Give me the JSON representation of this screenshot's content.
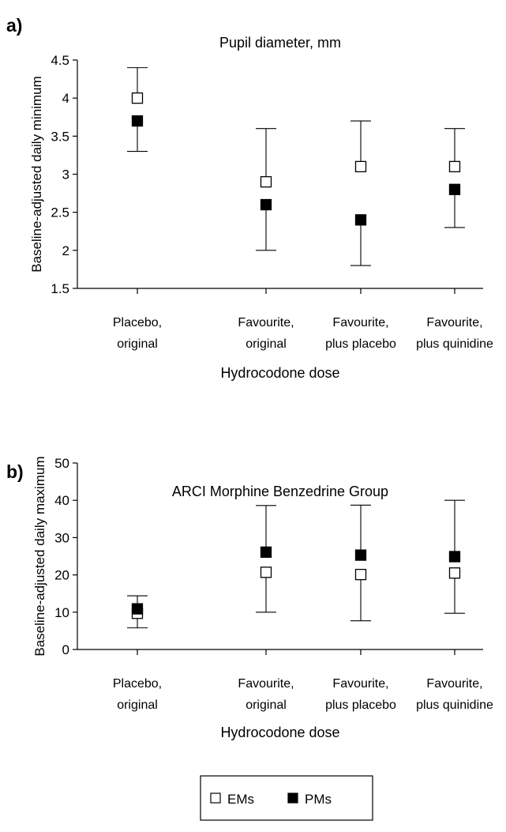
{
  "chart_data": [
    {
      "panel_label": "a)",
      "type": "scatter",
      "title": "Pupil diameter, mm",
      "ylabel": "Baseline-adjusted daily minimum",
      "xlabel": "Hydrocodone dose",
      "categories": [
        [
          "Placebo,",
          "original"
        ],
        [
          "Favourite,",
          "original"
        ],
        [
          "Favourite,",
          "plus placebo"
        ],
        [
          "Favourite,",
          "plus quinidine"
        ]
      ],
      "ylim": [
        1.5,
        4.5
      ],
      "yticks": [
        1.5,
        2,
        2.5,
        3,
        3.5,
        4,
        4.5
      ],
      "ytick_labels": [
        "1.5",
        "2",
        "2.5",
        "3",
        "3.5",
        "4",
        "4.5"
      ],
      "series": [
        {
          "name": "EMs",
          "marker": "open-square",
          "values": [
            4.0,
            2.9,
            3.1,
            3.1
          ]
        },
        {
          "name": "PMs",
          "marker": "filled-square",
          "values": [
            3.7,
            2.6,
            2.4,
            2.8
          ]
        }
      ],
      "error_bars": [
        {
          "series": "EMs",
          "direction": "up",
          "ends": [
            4.4,
            3.6,
            3.7,
            3.6
          ]
        },
        {
          "series": "PMs",
          "direction": "down",
          "ends": [
            3.3,
            2.0,
            1.8,
            2.3
          ]
        }
      ],
      "grid": false
    },
    {
      "panel_label": "b)",
      "type": "scatter",
      "title": "ARCI Morphine Benzedrine Group",
      "ylabel": "Baseline-adjusted daily maximum",
      "xlabel": "Hydrocodone dose",
      "categories": [
        [
          "Placebo,",
          "original"
        ],
        [
          "Favourite,",
          "original"
        ],
        [
          "Favourite,",
          "plus placebo"
        ],
        [
          "Favourite,",
          "plus quinidine"
        ]
      ],
      "ylim": [
        0,
        50
      ],
      "yticks": [
        0,
        10,
        20,
        30,
        40,
        50
      ],
      "ytick_labels": [
        "0",
        "10",
        "20",
        "30",
        "40",
        "50"
      ],
      "series": [
        {
          "name": "EMs",
          "marker": "open-square",
          "values": [
            9.7,
            20.7,
            20.1,
            20.5
          ]
        },
        {
          "name": "PMs",
          "marker": "filled-square",
          "values": [
            10.9,
            26.1,
            25.3,
            24.9
          ]
        }
      ],
      "error_bars": [
        {
          "series": "PMs",
          "direction": "up",
          "ends": [
            14.4,
            38.6,
            38.7,
            40.0
          ]
        },
        {
          "series": "EMs",
          "direction": "down",
          "ends": [
            5.8,
            10.0,
            7.7,
            9.7
          ]
        }
      ],
      "grid": false
    }
  ],
  "legend": {
    "placement": "bottom-center",
    "items": [
      {
        "label": "EMs",
        "marker": "open-square"
      },
      {
        "label": "PMs",
        "marker": "filled-square"
      }
    ]
  }
}
